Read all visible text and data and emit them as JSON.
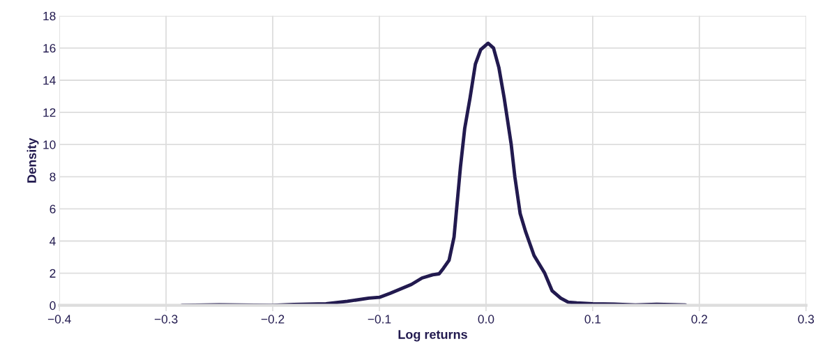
{
  "chart_data": {
    "type": "line",
    "xlabel": "Log returns",
    "ylabel": "Density",
    "grid": true,
    "line_style": "solid",
    "marker": "none",
    "xlim": [
      -0.4,
      0.3
    ],
    "xticks": [
      {
        "value": -0.4,
        "label": "−0.4"
      },
      {
        "value": -0.3,
        "label": "−0.3"
      },
      {
        "value": -0.2,
        "label": "−0.2"
      },
      {
        "value": -0.1,
        "label": "−0.1"
      },
      {
        "value": 0,
        "label": "0.0"
      },
      {
        "value": 0.1,
        "label": "0.1"
      },
      {
        "value": 0.2,
        "label": "0.2"
      },
      {
        "value": 0.3,
        "label": "0.3"
      }
    ],
    "ylim": [
      0,
      18
    ],
    "yticks": [
      0,
      2,
      4,
      6,
      8,
      10,
      12,
      14,
      16,
      18
    ],
    "series": [
      {
        "color": "#221a4f",
        "x": [
          -0.285,
          -0.25,
          -0.2,
          -0.18,
          -0.15,
          -0.13,
          -0.11,
          -0.1,
          -0.09,
          -0.07,
          -0.06,
          -0.05,
          -0.044,
          -0.04,
          -0.0347,
          -0.03,
          -0.024,
          -0.02,
          -0.015,
          -0.01,
          -0.005,
          0.002,
          0.007,
          0.012,
          0.017,
          0.0236,
          0.027,
          0.032,
          0.037,
          0.045,
          0.055,
          0.062,
          0.07,
          0.077,
          0.085,
          0.1,
          0.12,
          0.14,
          0.16,
          0.187
        ],
        "values": [
          0,
          0.03,
          0,
          0.05,
          0.1,
          0.25,
          0.45,
          0.5,
          0.75,
          1.3,
          1.7,
          1.9,
          1.96,
          2.3,
          2.8,
          4.25,
          8.6,
          11,
          12.9,
          15,
          15.9,
          16.3,
          16,
          14.8,
          12.9,
          10,
          8,
          5.7,
          4.6,
          3.1,
          2,
          0.9,
          0.45,
          0.2,
          0.15,
          0.1,
          0.08,
          0.02,
          0.07,
          0.02
        ]
      }
    ]
  }
}
